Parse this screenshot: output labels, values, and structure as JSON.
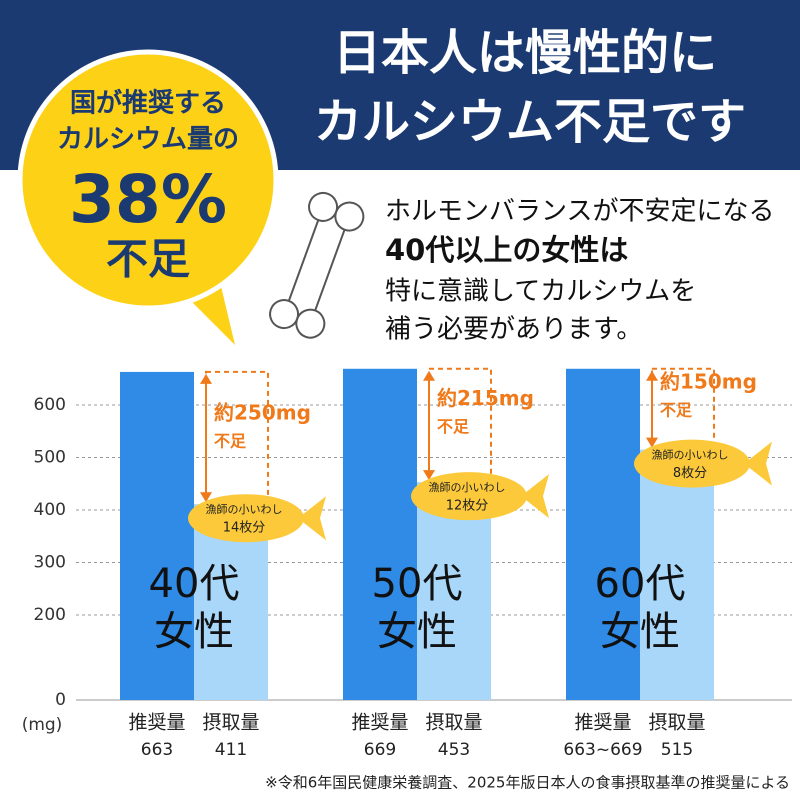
{
  "header": {
    "title_lines": [
      "日本人は慢性的に",
      "カルシウム不足です"
    ]
  },
  "badge": {
    "lines": [
      "国が推奨する",
      "カルシウム量の"
    ],
    "figure": "38%",
    "suffix": "不足"
  },
  "message": {
    "lines": [
      "ホルモンバランスが不安定になる",
      "40代以上の女性は",
      "特に意識してカルシウムを",
      "補う必要があります。"
    ]
  },
  "chart_data": {
    "type": "bar",
    "categories": [
      "40代\n女性",
      "50代\n女性",
      "60代\n女性"
    ],
    "series": [
      {
        "name": "推奨量",
        "color": "#2f8be6",
        "values": [
          663,
          669,
          669
        ],
        "value_labels": [
          "663",
          "669",
          "663~669"
        ]
      },
      {
        "name": "摂取量",
        "color": "#a9d7f9",
        "values": [
          411,
          453,
          515
        ]
      }
    ],
    "y_label": "(mg)",
    "ylim": [
      0,
      700
    ],
    "yticks": [
      0,
      200,
      300,
      400,
      500,
      600
    ],
    "grid": true,
    "shortfall_labels": [
      [
        "約250mg",
        "不足"
      ],
      [
        "約215mg",
        "不足"
      ],
      [
        "約150mg",
        "不足"
      ]
    ],
    "fish_labels": [
      [
        "漁師の小いわし",
        "14枚分"
      ],
      [
        "漁師の小いわし",
        "12枚分"
      ],
      [
        "漁師の小いわし",
        "8枚分"
      ]
    ]
  },
  "footnote": "※令和6年国民健康栄養調査、2025年版日本人の食事摂取基準の推奨量による"
}
